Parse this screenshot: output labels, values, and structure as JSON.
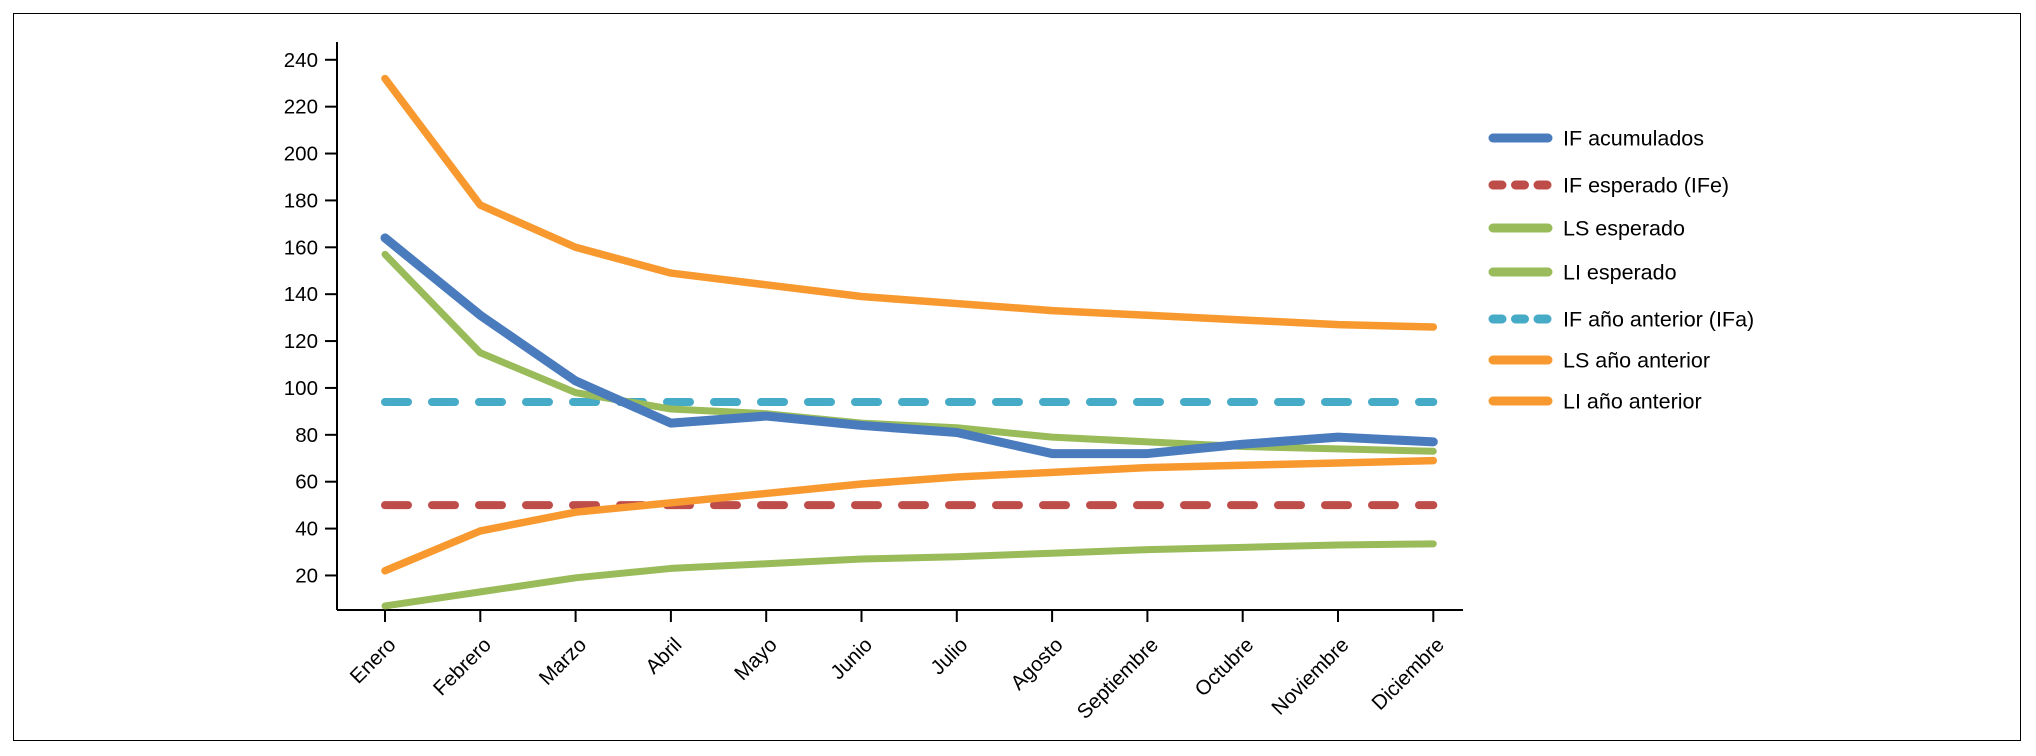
{
  "chart_data": {
    "type": "line",
    "title": "",
    "xlabel": "",
    "ylabel": "",
    "grid": false,
    "legend_position": "right",
    "categories": [
      "Enero",
      "Febrero",
      "Marzo",
      "Abril",
      "Mayo",
      "Junio",
      "Julio",
      "Agosto",
      "Septiembre",
      "Octubre",
      "Noviembre",
      "Diciembre"
    ],
    "y_axis": {
      "min": 5,
      "max": 243,
      "ticks": [
        20,
        40,
        60,
        80,
        100,
        120,
        140,
        160,
        180,
        200,
        220,
        240
      ]
    },
    "colors": {
      "blue": "#4A7BBD",
      "red": "#BE4C49",
      "green": "#9ABB59",
      "cyan": "#45ABC7",
      "orange": "#F8992F",
      "axis": "#000000"
    },
    "series": [
      {
        "name": "IF acumulados",
        "color": "#4A7BBD",
        "dash": false,
        "width": 9,
        "z": 7,
        "values": [
          164,
          131,
          103,
          85,
          88,
          84,
          81,
          72,
          72,
          76,
          79,
          77
        ]
      },
      {
        "name": "IF esperado (IFe)",
        "color": "#BE4C49",
        "dash": true,
        "width": 8,
        "z": 2,
        "values": [
          50,
          50,
          50,
          50,
          50,
          50,
          50,
          50,
          50,
          50,
          50,
          50
        ]
      },
      {
        "name": "LS esperado",
        "color": "#9ABB59",
        "dash": false,
        "width": 7,
        "z": 5,
        "values": [
          157,
          115,
          98,
          91,
          89,
          85,
          83,
          79,
          77,
          75,
          74,
          73
        ]
      },
      {
        "name": "LI esperado",
        "color": "#9ABB59",
        "dash": false,
        "width": 7,
        "z": 6,
        "values": [
          7,
          13,
          19,
          23,
          25,
          27,
          28,
          29.5,
          31,
          32,
          33,
          33.5
        ]
      },
      {
        "name": "IF año anterior (IFa)",
        "color": "#45ABC7",
        "dash": true,
        "width": 8,
        "z": 1,
        "values": [
          94,
          94,
          94,
          94,
          94,
          94,
          94,
          94,
          94,
          94,
          94,
          94
        ]
      },
      {
        "name": "LS año anterior",
        "color": "#F8992F",
        "dash": false,
        "width": 7.5,
        "z": 3,
        "values": [
          232,
          178,
          160,
          149,
          144,
          139,
          136,
          133,
          131,
          129,
          127,
          126
        ]
      },
      {
        "name": "LI año anterior",
        "color": "#F8992F",
        "dash": false,
        "width": 7.5,
        "z": 4,
        "values": [
          22,
          39,
          47,
          51,
          55,
          59,
          62,
          64,
          66,
          67,
          68,
          69
        ]
      }
    ]
  }
}
